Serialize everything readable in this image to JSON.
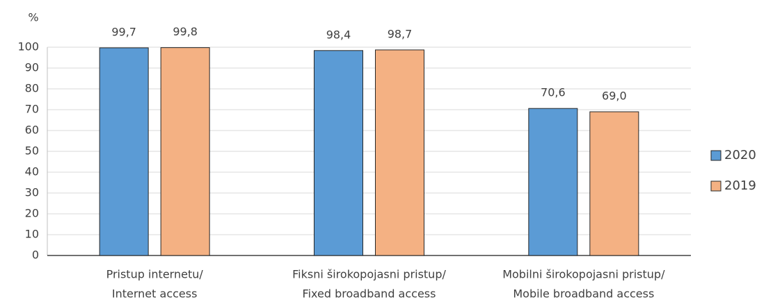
{
  "chart_data": {
    "type": "bar",
    "y_label": "%",
    "categories": [
      [
        "Pristup internetu/",
        "Internet access"
      ],
      [
        "Fiksni širokopojasni pristup/",
        "Fixed broadband access"
      ],
      [
        "Mobilni širokopojasni pristup/",
        "Mobile broadband access"
      ]
    ],
    "series": [
      {
        "name": "2020",
        "color": "#5b9bd5",
        "values": [
          99.7,
          98.4,
          70.6
        ],
        "value_labels": [
          "99,7",
          "98,4",
          "70,6"
        ]
      },
      {
        "name": "2019",
        "color": "#f4b183",
        "values": [
          99.8,
          98.7,
          69.0
        ],
        "value_labels": [
          "99,8",
          "98,7",
          "69,0"
        ]
      }
    ],
    "ylim": [
      0,
      100
    ],
    "yticks": [
      0,
      10,
      20,
      30,
      40,
      50,
      60,
      70,
      80,
      90,
      100
    ],
    "grid": true,
    "legend": "right"
  }
}
